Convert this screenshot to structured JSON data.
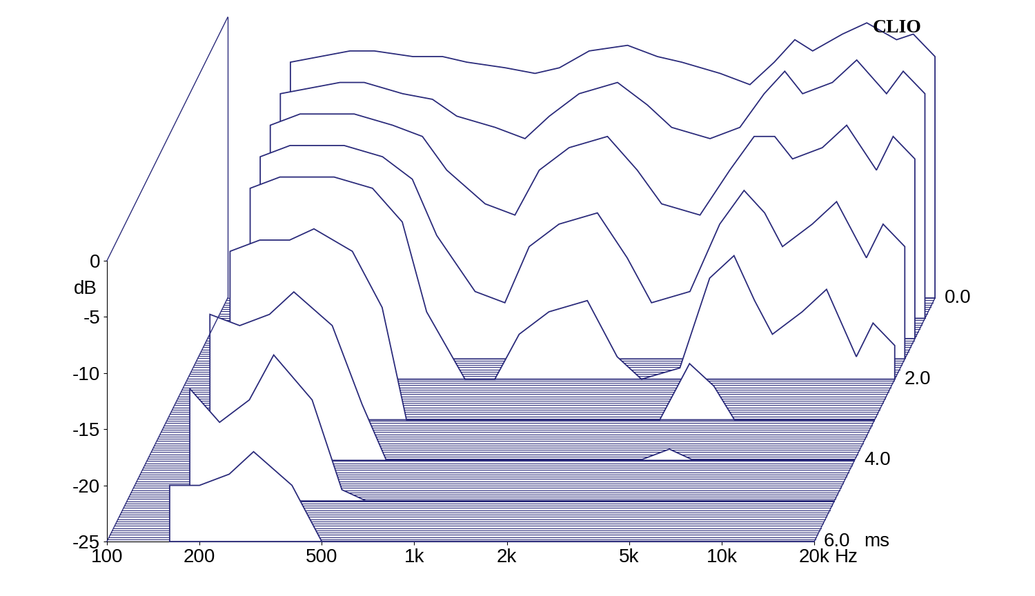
{
  "chart_data": {
    "type": "waterfall",
    "title": "CLIO",
    "xlabel": "Hz",
    "ylabel": "dB",
    "zlabel": "ms",
    "log": "x",
    "color": "#2b2b7b",
    "xlim": [
      100,
      20000
    ],
    "xticks": [
      100,
      200,
      500,
      {
        "value": 1000,
        "label": "1k"
      },
      {
        "value": 2000,
        "label": "2k"
      },
      {
        "value": 5000,
        "label": "5k"
      },
      {
        "value": 10000,
        "label": "10k"
      },
      {
        "value": 20000,
        "label": "20k"
      }
    ],
    "ylim": [
      -25,
      0
    ],
    "yticks": [
      -25,
      -20,
      -15,
      -10,
      -5,
      0
    ],
    "zlim": [
      0.0,
      6.0
    ],
    "zticks": [
      0.0,
      2.0,
      4.0,
      6.0
    ],
    "x": [
      160,
      200,
      250,
      300,
      400,
      500,
      600,
      800,
      1000,
      1200,
      1500,
      2000,
      2500,
      3000,
      4000,
      5000,
      6000,
      7000,
      8000,
      10000,
      12000,
      15000,
      17000,
      20000
    ],
    "slices": [
      {
        "time": 0.0,
        "values": [
          -4,
          -3.5,
          -3,
          -3,
          -3.5,
          -3.5,
          -4,
          -4.5,
          -5,
          -4.5,
          -3,
          -2.5,
          -3.5,
          -4,
          -5,
          -6,
          -4,
          -2,
          -3,
          -1.5,
          -0.5,
          -2,
          -1.5,
          -3.5
        ]
      },
      {
        "time": 0.5,
        "values": [
          -5,
          -4.5,
          -4,
          -4,
          -5,
          -5.5,
          -7,
          -8,
          -9,
          -7,
          -5,
          -4,
          -6,
          -8,
          -9,
          -8,
          -5,
          -3,
          -5,
          -4,
          -2,
          -5,
          -3,
          -5
        ]
      },
      {
        "time": 1.0,
        "values": [
          -6,
          -5,
          -5,
          -5,
          -6,
          -7,
          -10,
          -13,
          -14,
          -10,
          -8,
          -7,
          -10,
          -13,
          -14,
          -10,
          -7,
          -7,
          -9,
          -8,
          -6,
          -10,
          -7,
          -9
        ]
      },
      {
        "time": 1.5,
        "values": [
          -7,
          -6,
          -6,
          -6,
          -7,
          -9,
          -14,
          -19,
          -20,
          -15,
          -13,
          -12,
          -16,
          -20,
          -19,
          -13,
          -10,
          -12,
          -15,
          -13,
          -11,
          -16,
          -13,
          -15
        ]
      },
      {
        "time": 2.0,
        "values": [
          -8,
          -7,
          -7,
          -7,
          -8,
          -11,
          -19,
          -25,
          -25,
          -21,
          -19,
          -18,
          -23,
          -25,
          -24,
          -16,
          -14,
          -18,
          -21,
          -19,
          -17,
          -23,
          -20,
          -22
        ]
      },
      {
        "time": 3.0,
        "values": [
          -10,
          -9,
          -9,
          -8,
          -10,
          -15,
          -25,
          -25,
          -25,
          -25,
          -25,
          -25,
          -25,
          -25,
          -25,
          -20,
          -22,
          -25,
          -25,
          -25,
          -25,
          -25,
          -25,
          -25
        ]
      },
      {
        "time": 4.0,
        "values": [
          -12,
          -13,
          -12,
          -10,
          -13,
          -20,
          -25,
          -25,
          -25,
          -25,
          -25,
          -25,
          -25,
          -25,
          -25,
          -24,
          -25,
          -25,
          -25,
          -25,
          -25,
          -25,
          -25,
          -25
        ]
      },
      {
        "time": 5.0,
        "values": [
          -15,
          -18,
          -16,
          -12,
          -16,
          -24,
          -25,
          -25,
          -25,
          -25,
          -25,
          -25,
          -25,
          -25,
          -25,
          -25,
          -25,
          -25,
          -25,
          -25,
          -25,
          -25,
          -25,
          -25
        ]
      },
      {
        "time": 6.0,
        "values": [
          -20,
          -20,
          -19,
          -17,
          -20,
          -25,
          -25,
          -25,
          -25,
          -25,
          -25,
          -25,
          -25,
          -25,
          -25,
          -25,
          -25,
          -25,
          -25,
          -25,
          -25,
          -25,
          -25,
          -25
        ]
      }
    ]
  }
}
